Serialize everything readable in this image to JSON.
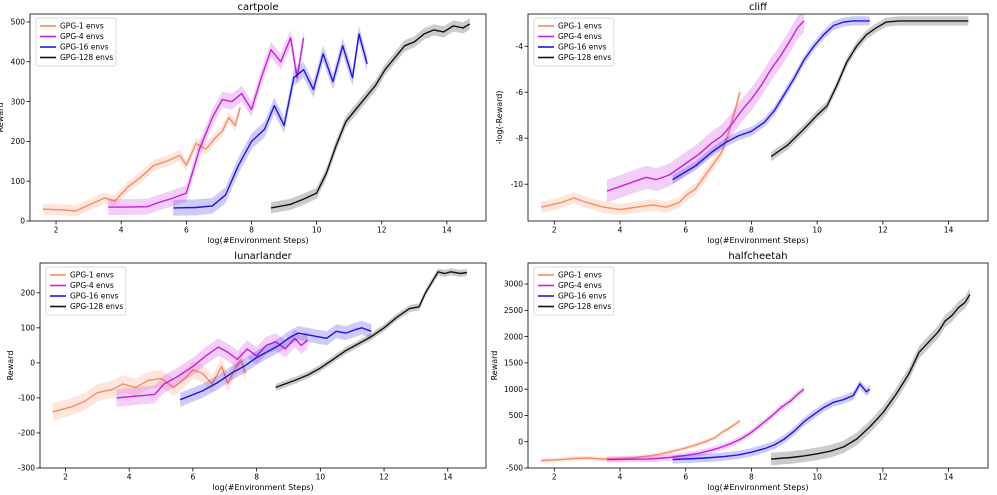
{
  "chart_data": [
    {
      "type": "line",
      "title": "cartpole",
      "xlabel": "log(#Environment Steps)",
      "ylabel": "Reward",
      "xlim": [
        1.2,
        15.2
      ],
      "ylim": [
        0,
        520
      ],
      "xticks": [
        2,
        4,
        6,
        8,
        10,
        12,
        14
      ],
      "yticks": [
        0,
        100,
        200,
        300,
        400,
        500
      ],
      "legend": "top-left",
      "series": [
        {
          "name": "GPG-1 envs",
          "color": "#fa8c64",
          "band": 14,
          "x": [
            1.6,
            2.2,
            2.6,
            3.0,
            3.5,
            3.8,
            4.2,
            4.6,
            5.0,
            5.4,
            5.8,
            6.0,
            6.3,
            6.6,
            6.9,
            7.1,
            7.3,
            7.5,
            7.65
          ],
          "y": [
            30,
            28,
            25,
            40,
            58,
            50,
            85,
            110,
            140,
            150,
            165,
            140,
            195,
            180,
            210,
            225,
            260,
            240,
            285
          ]
        },
        {
          "name": "GPG-4 envs",
          "color": "#c81ede",
          "band": 20,
          "x": [
            3.6,
            4.2,
            4.8,
            5.1,
            5.5,
            6.0,
            6.4,
            6.8,
            7.1,
            7.4,
            7.7,
            8.0,
            8.3,
            8.6,
            8.9,
            9.2,
            9.4,
            9.6
          ],
          "y": [
            35,
            35,
            36,
            45,
            55,
            70,
            180,
            260,
            305,
            300,
            320,
            280,
            360,
            430,
            400,
            460,
            360,
            460
          ]
        },
        {
          "name": "GPG-16 envs",
          "color": "#1e14e8",
          "band": 20,
          "x": [
            5.6,
            6.3,
            6.8,
            7.2,
            7.6,
            8.0,
            8.4,
            8.7,
            9.0,
            9.3,
            9.6,
            9.9,
            10.2,
            10.5,
            10.8,
            11.1,
            11.3,
            11.55
          ],
          "y": [
            33,
            34,
            38,
            65,
            140,
            200,
            230,
            290,
            240,
            360,
            380,
            330,
            420,
            350,
            440,
            360,
            470,
            395
          ]
        },
        {
          "name": "GPG-128 envs",
          "color": "#111111",
          "band": 14,
          "x": [
            8.6,
            9.2,
            9.6,
            10.0,
            10.3,
            10.6,
            10.9,
            11.2,
            11.5,
            11.8,
            12.1,
            12.4,
            12.7,
            13.0,
            13.3,
            13.6,
            13.9,
            14.2,
            14.5,
            14.7
          ],
          "y": [
            33,
            42,
            55,
            70,
            120,
            190,
            250,
            280,
            310,
            340,
            380,
            410,
            440,
            450,
            470,
            480,
            475,
            490,
            485,
            495
          ]
        }
      ]
    },
    {
      "type": "line",
      "title": "cliff",
      "xlabel": "log(#Environment Steps)",
      "ylabel": "-log(-Reward)",
      "xlim": [
        1.2,
        15.2
      ],
      "ylim": [
        -11.6,
        -2.6
      ],
      "xticks": [
        2,
        4,
        6,
        8,
        10,
        12,
        14
      ],
      "yticks": [
        -10,
        -8,
        -6,
        -4
      ],
      "legend": "top-left",
      "series": [
        {
          "name": "GPG-1 envs",
          "color": "#fa8c64",
          "band": 0.25,
          "x": [
            1.6,
            2.2,
            2.6,
            3.0,
            3.5,
            4.0,
            4.5,
            5.0,
            5.4,
            5.8,
            6.0,
            6.3,
            6.6,
            6.9,
            7.1,
            7.3,
            7.5,
            7.65
          ],
          "y": [
            -11.0,
            -10.8,
            -10.6,
            -10.8,
            -11.0,
            -11.1,
            -11.0,
            -10.9,
            -11.0,
            -10.8,
            -10.5,
            -10.2,
            -9.6,
            -9.0,
            -8.6,
            -7.8,
            -6.8,
            -6.0
          ]
        },
        {
          "name": "GPG-4 envs",
          "color": "#c81ede",
          "band": 0.5,
          "x": [
            3.6,
            4.2,
            4.8,
            5.1,
            5.5,
            6.0,
            6.4,
            6.8,
            7.1,
            7.4,
            7.7,
            8.0,
            8.3,
            8.6,
            8.9,
            9.2,
            9.4,
            9.6
          ],
          "y": [
            -10.3,
            -10.0,
            -9.7,
            -9.8,
            -9.6,
            -9.1,
            -8.7,
            -8.2,
            -7.9,
            -7.4,
            -6.8,
            -6.3,
            -5.7,
            -5.0,
            -4.4,
            -3.7,
            -3.2,
            -2.9
          ]
        },
        {
          "name": "GPG-16 envs",
          "color": "#1e14e8",
          "band": 0.2,
          "x": [
            5.6,
            6.3,
            6.8,
            7.2,
            7.6,
            8.0,
            8.4,
            8.7,
            9.0,
            9.3,
            9.6,
            9.9,
            10.2,
            10.5,
            10.8,
            11.1,
            11.3,
            11.6
          ],
          "y": [
            -9.8,
            -9.2,
            -8.6,
            -8.2,
            -7.9,
            -7.7,
            -7.3,
            -6.8,
            -6.1,
            -5.4,
            -4.6,
            -4.0,
            -3.5,
            -3.1,
            -2.95,
            -2.9,
            -2.9,
            -2.9
          ]
        },
        {
          "name": "GPG-128 envs",
          "color": "#111111",
          "band": 0.2,
          "x": [
            8.6,
            9.1,
            9.6,
            10.0,
            10.3,
            10.6,
            10.9,
            11.2,
            11.5,
            11.8,
            12.1,
            12.5,
            13.0,
            13.5,
            14.0,
            14.6
          ],
          "y": [
            -8.8,
            -8.3,
            -7.6,
            -7.0,
            -6.6,
            -5.7,
            -4.7,
            -4.0,
            -3.5,
            -3.2,
            -2.95,
            -2.9,
            -2.9,
            -2.9,
            -2.9,
            -2.9
          ]
        }
      ]
    },
    {
      "type": "line",
      "title": "lunarlander",
      "xlabel": "log(#Environment Steps)",
      "ylabel": "Reward",
      "xlim": [
        1.2,
        15.2
      ],
      "ylim": [
        -300,
        285
      ],
      "xticks": [
        2,
        4,
        6,
        8,
        10,
        12,
        14
      ],
      "yticks": [
        -300,
        -200,
        -100,
        0,
        100,
        200
      ],
      "legend": "top-left",
      "series": [
        {
          "name": "GPG-1 envs",
          "color": "#fa8c64",
          "band": 25,
          "x": [
            1.6,
            2.2,
            2.6,
            3.0,
            3.5,
            3.8,
            4.2,
            4.6,
            5.0,
            5.4,
            5.8,
            6.0,
            6.3,
            6.6,
            6.9,
            7.1,
            7.3,
            7.5,
            7.65
          ],
          "y": [
            -140,
            -125,
            -110,
            -85,
            -75,
            -60,
            -70,
            -50,
            -45,
            -70,
            -40,
            -20,
            -30,
            -60,
            -10,
            -60,
            -20,
            10,
            -30
          ]
        },
        {
          "name": "GPG-4 envs",
          "color": "#c81ede",
          "band": 25,
          "x": [
            3.6,
            4.2,
            4.8,
            5.1,
            5.5,
            6.0,
            6.4,
            6.8,
            7.1,
            7.4,
            7.7,
            8.0,
            8.3,
            8.6,
            8.9,
            9.2,
            9.4,
            9.6
          ],
          "y": [
            -100,
            -95,
            -90,
            -60,
            -40,
            -10,
            20,
            45,
            30,
            10,
            40,
            20,
            50,
            60,
            40,
            70,
            50,
            65
          ]
        },
        {
          "name": "GPG-16 envs",
          "color": "#1e14e8",
          "band": 20,
          "x": [
            5.6,
            6.3,
            6.8,
            7.2,
            7.6,
            8.0,
            8.4,
            8.7,
            9.0,
            9.3,
            9.6,
            9.9,
            10.2,
            10.5,
            10.8,
            11.1,
            11.3,
            11.6
          ],
          "y": [
            -105,
            -80,
            -55,
            -30,
            -10,
            15,
            35,
            50,
            70,
            85,
            80,
            75,
            70,
            90,
            85,
            95,
            100,
            90
          ]
        },
        {
          "name": "GPG-128 envs",
          "color": "#111111",
          "band": 10,
          "x": [
            8.6,
            9.2,
            9.6,
            10.0,
            10.4,
            10.8,
            11.2,
            11.6,
            12.0,
            12.4,
            12.8,
            13.1,
            13.3,
            13.5,
            13.7,
            13.9,
            14.1,
            14.4,
            14.6
          ],
          "y": [
            -70,
            -50,
            -35,
            -15,
            10,
            35,
            55,
            75,
            100,
            130,
            155,
            160,
            200,
            230,
            260,
            255,
            260,
            255,
            258
          ]
        }
      ]
    },
    {
      "type": "line",
      "title": "halfcheetah",
      "xlabel": "log(#Environment Steps)",
      "ylabel": "Reward",
      "xlim": [
        1.2,
        15.2
      ],
      "ylim": [
        -500,
        3400
      ],
      "xticks": [
        2,
        4,
        6,
        8,
        10,
        12,
        14
      ],
      "yticks": [
        -500,
        0,
        500,
        1000,
        1500,
        2000,
        2500,
        3000
      ],
      "legend": "top-left",
      "series": [
        {
          "name": "GPG-1 envs",
          "color": "#fa8c64",
          "band": 40,
          "x": [
            1.6,
            2.2,
            2.6,
            3.0,
            3.5,
            4.0,
            4.5,
            5.0,
            5.5,
            6.0,
            6.3,
            6.6,
            6.9,
            7.1,
            7.3,
            7.5,
            7.65
          ],
          "y": [
            -360,
            -340,
            -320,
            -310,
            -330,
            -320,
            -300,
            -260,
            -200,
            -120,
            -60,
            0,
            80,
            180,
            250,
            330,
            400
          ]
        },
        {
          "name": "GPG-4 envs",
          "color": "#c81ede",
          "band": 60,
          "x": [
            3.6,
            4.2,
            4.8,
            5.1,
            5.5,
            6.0,
            6.4,
            6.8,
            7.1,
            7.4,
            7.7,
            8.0,
            8.3,
            8.6,
            8.9,
            9.2,
            9.4,
            9.6
          ],
          "y": [
            -340,
            -335,
            -330,
            -320,
            -300,
            -260,
            -220,
            -160,
            -100,
            -30,
            60,
            180,
            330,
            480,
            650,
            780,
            900,
            1000
          ]
        },
        {
          "name": "GPG-16 envs",
          "color": "#1e14e8",
          "band": 80,
          "x": [
            5.6,
            6.3,
            6.8,
            7.2,
            7.6,
            8.0,
            8.4,
            8.7,
            9.0,
            9.3,
            9.6,
            9.9,
            10.2,
            10.5,
            10.8,
            11.1,
            11.3,
            11.5,
            11.6
          ],
          "y": [
            -340,
            -320,
            -300,
            -280,
            -250,
            -200,
            -130,
            -60,
            50,
            200,
            380,
            520,
            650,
            750,
            800,
            880,
            1100,
            950,
            1000
          ]
        },
        {
          "name": "GPG-128 envs",
          "color": "#111111",
          "band": 120,
          "x": [
            8.6,
            9.2,
            9.6,
            10.0,
            10.4,
            10.8,
            11.2,
            11.6,
            12.0,
            12.4,
            12.8,
            13.1,
            13.4,
            13.7,
            13.9,
            14.1,
            14.3,
            14.5,
            14.65
          ],
          "y": [
            -330,
            -300,
            -270,
            -230,
            -180,
            -100,
            50,
            280,
            550,
            900,
            1300,
            1700,
            1900,
            2100,
            2300,
            2400,
            2550,
            2650,
            2800
          ]
        }
      ]
    }
  ]
}
